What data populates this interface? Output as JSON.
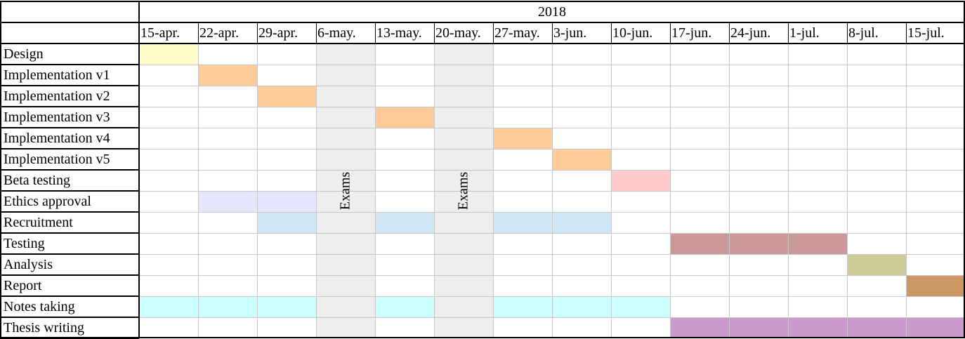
{
  "chart_data": {
    "type": "gantt",
    "year": "2018",
    "weeks": [
      "15-apr.",
      "22-apr.",
      "29-apr.",
      "6-may.",
      "13-may.",
      "20-may.",
      "27-may.",
      "3-jun.",
      "10-jun.",
      "17-jun.",
      "24-jun.",
      "1-jul.",
      "8-jul.",
      "15-jul."
    ],
    "tasks": [
      {
        "name": "Design",
        "color": "#ffffcc",
        "spans": [
          [
            "15-apr.",
            "15-apr."
          ]
        ]
      },
      {
        "name": "Implementation v1",
        "color": "#ffcc99",
        "spans": [
          [
            "22-apr.",
            "22-apr."
          ]
        ]
      },
      {
        "name": "Implementation v2",
        "color": "#ffcc99",
        "spans": [
          [
            "29-apr.",
            "29-apr."
          ]
        ]
      },
      {
        "name": "Implementation v3",
        "color": "#ffcc99",
        "spans": [
          [
            "13-may.",
            "13-may."
          ]
        ]
      },
      {
        "name": "Implementation v4",
        "color": "#ffcc99",
        "spans": [
          [
            "27-may.",
            "27-may."
          ]
        ]
      },
      {
        "name": "Implementation v5",
        "color": "#ffcc99",
        "spans": [
          [
            "3-jun.",
            "3-jun."
          ]
        ]
      },
      {
        "name": "Beta testing",
        "color": "#ffcccc",
        "spans": [
          [
            "10-jun.",
            "10-jun."
          ]
        ]
      },
      {
        "name": "Ethics approval",
        "color": "#e6e6ff",
        "spans": [
          [
            "22-apr.",
            "29-apr."
          ]
        ]
      },
      {
        "name": "Recruitment",
        "color": "#cfe6f5",
        "spans": [
          [
            "29-apr.",
            "29-apr."
          ],
          [
            "13-may.",
            "13-may."
          ],
          [
            "27-may.",
            "3-jun."
          ]
        ]
      },
      {
        "name": "Testing",
        "color": "#cc9999",
        "spans": [
          [
            "17-jun.",
            "1-jul."
          ]
        ]
      },
      {
        "name": "Analysis",
        "color": "#cccc99",
        "spans": [
          [
            "8-jul.",
            "8-jul."
          ]
        ]
      },
      {
        "name": "Report",
        "color": "#cc9966",
        "spans": [
          [
            "15-jul.",
            "15-jul."
          ]
        ]
      },
      {
        "name": "Notes taking",
        "color": "#ccffff",
        "spans": [
          [
            "15-apr.",
            "29-apr."
          ],
          [
            "13-may.",
            "13-may."
          ],
          [
            "27-may.",
            "10-jun."
          ]
        ]
      },
      {
        "name": "Thesis writing",
        "color": "#cc99cc",
        "spans": [
          [
            "17-jun.",
            "15-jul."
          ]
        ]
      }
    ],
    "blocks": [
      {
        "week": "6-may.",
        "label": "Exams",
        "color": "#eeeeee"
      },
      {
        "week": "20-may.",
        "label": "Exams",
        "color": "#eeeeee"
      }
    ],
    "grid": true
  }
}
